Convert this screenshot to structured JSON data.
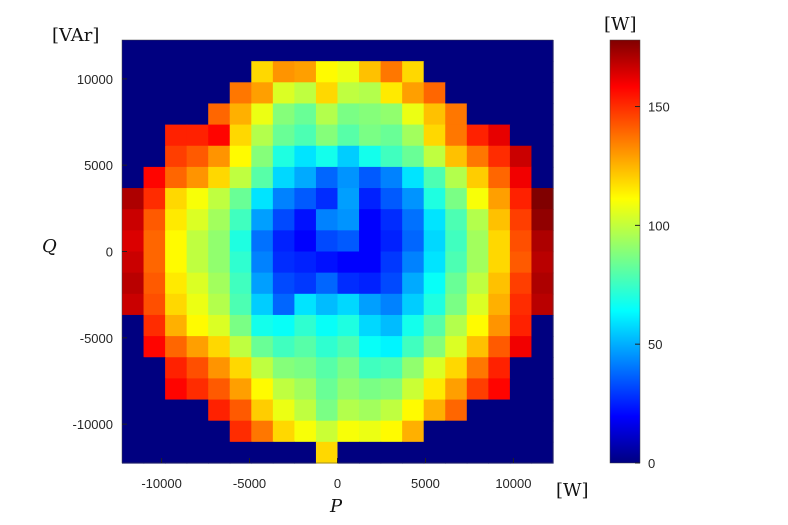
{
  "chart_data": {
    "type": "heatmap",
    "title": "",
    "xlabel": "P",
    "ylabel": "Q",
    "x_unit": "[W]",
    "y_unit": "[VAr]",
    "colorbar_unit": "[W]",
    "xlim": [
      -12250,
      12250
    ],
    "ylim": [
      -12250,
      12250
    ],
    "cell_size": 1225,
    "x_ticks": [
      -10000,
      -5000,
      0,
      5000,
      10000
    ],
    "y_ticks": [
      10000,
      5000,
      0,
      -5000,
      -10000
    ],
    "x_tick_labels": [
      "-10000",
      "-5000",
      "0",
      "5000",
      "10000"
    ],
    "y_tick_labels": [
      "10000",
      "5000",
      "0",
      "-5000",
      "-10000"
    ],
    "colorbar_range": [
      0,
      178
    ],
    "colorbar_ticks": [
      0,
      50,
      100,
      150
    ],
    "colorbar_tick_labels": [
      "0",
      "50",
      "100",
      "150"
    ],
    "colormap": "jet",
    "background_value": 0,
    "x_centers": [
      -11637.5,
      -10412.5,
      -9187.5,
      -7962.5,
      -6737.5,
      -5512.5,
      -4287.5,
      -3062.5,
      -1837.5,
      -612.5,
      612.5,
      1837.5,
      3062.5,
      4287.5,
      5512.5,
      6737.5,
      7962.5,
      9187.5,
      10412.5,
      11637.5
    ],
    "y_centers": [
      11637.5,
      10412.5,
      9187.5,
      7962.5,
      6737.5,
      5512.5,
      4287.5,
      3062.5,
      1837.5,
      612.5,
      -612.5,
      -1837.5,
      -3062.5,
      -4287.5,
      -5512.5,
      -6737.5,
      -7962.5,
      -9187.5,
      -10412.5,
      -11637.5
    ],
    "z": [
      [
        0,
        0,
        0,
        0,
        0,
        0,
        0,
        0,
        0,
        0,
        0,
        0,
        0,
        0,
        0,
        0,
        0,
        0,
        0,
        0
      ],
      [
        0,
        0,
        0,
        0,
        0,
        0,
        118,
        130,
        128,
        112,
        108,
        122,
        135,
        118,
        0,
        0,
        0,
        0,
        0,
        0
      ],
      [
        0,
        0,
        0,
        0,
        0,
        135,
        128,
        105,
        100,
        118,
        100,
        98,
        115,
        128,
        138,
        0,
        0,
        0,
        0,
        0
      ],
      [
        0,
        0,
        0,
        0,
        138,
        125,
        108,
        90,
        85,
        98,
        88,
        90,
        92,
        108,
        122,
        135,
        0,
        0,
        0,
        0
      ],
      [
        0,
        0,
        150,
        150,
        155,
        118,
        98,
        85,
        80,
        90,
        82,
        88,
        85,
        95,
        118,
        135,
        150,
        160,
        0,
        0
      ],
      [
        0,
        0,
        145,
        140,
        130,
        112,
        90,
        72,
        62,
        70,
        58,
        70,
        78,
        85,
        100,
        122,
        135,
        148,
        165,
        0
      ],
      [
        0,
        155,
        138,
        130,
        118,
        100,
        82,
        60,
        52,
        40,
        48,
        38,
        45,
        62,
        80,
        98,
        120,
        138,
        158,
        0
      ],
      [
        170,
        148,
        118,
        110,
        100,
        85,
        62,
        45,
        38,
        30,
        50,
        28,
        38,
        48,
        72,
        88,
        110,
        128,
        150,
        178
      ],
      [
        165,
        140,
        115,
        105,
        95,
        78,
        50,
        35,
        25,
        45,
        48,
        22,
        30,
        42,
        62,
        80,
        98,
        122,
        145,
        175
      ],
      [
        162,
        138,
        112,
        100,
        92,
        72,
        42,
        28,
        22,
        35,
        38,
        22,
        28,
        40,
        60,
        78,
        95,
        118,
        142,
        170
      ],
      [
        165,
        138,
        112,
        100,
        92,
        75,
        45,
        30,
        28,
        25,
        22,
        22,
        32,
        45,
        62,
        80,
        95,
        118,
        140,
        168
      ],
      [
        168,
        140,
        115,
        105,
        95,
        78,
        50,
        35,
        32,
        40,
        30,
        28,
        35,
        52,
        68,
        85,
        100,
        122,
        145,
        170
      ],
      [
        165,
        142,
        118,
        108,
        98,
        80,
        58,
        40,
        62,
        55,
        60,
        50,
        45,
        58,
        72,
        88,
        105,
        125,
        148,
        168
      ],
      [
        0,
        148,
        125,
        112,
        105,
        88,
        70,
        68,
        75,
        68,
        72,
        60,
        55,
        70,
        82,
        98,
        112,
        130,
        150,
        0
      ],
      [
        0,
        155,
        138,
        128,
        118,
        100,
        85,
        78,
        82,
        75,
        80,
        68,
        65,
        78,
        90,
        105,
        122,
        140,
        158,
        0
      ],
      [
        0,
        0,
        150,
        142,
        130,
        118,
        100,
        90,
        88,
        82,
        88,
        78,
        80,
        92,
        105,
        118,
        135,
        150,
        0,
        0
      ],
      [
        0,
        0,
        155,
        148,
        140,
        128,
        112,
        100,
        95,
        85,
        92,
        88,
        90,
        102,
        115,
        128,
        145,
        155,
        0,
        0
      ],
      [
        0,
        0,
        0,
        0,
        150,
        140,
        120,
        108,
        100,
        88,
        98,
        95,
        100,
        112,
        125,
        138,
        0,
        0,
        0,
        0
      ],
      [
        0,
        0,
        0,
        0,
        0,
        148,
        135,
        118,
        110,
        102,
        110,
        108,
        112,
        125,
        0,
        0,
        0,
        0,
        0,
        0
      ],
      [
        0,
        0,
        0,
        0,
        0,
        0,
        0,
        0,
        0,
        118,
        0,
        0,
        0,
        0,
        0,
        0,
        0,
        0,
        0,
        0
      ]
    ]
  }
}
